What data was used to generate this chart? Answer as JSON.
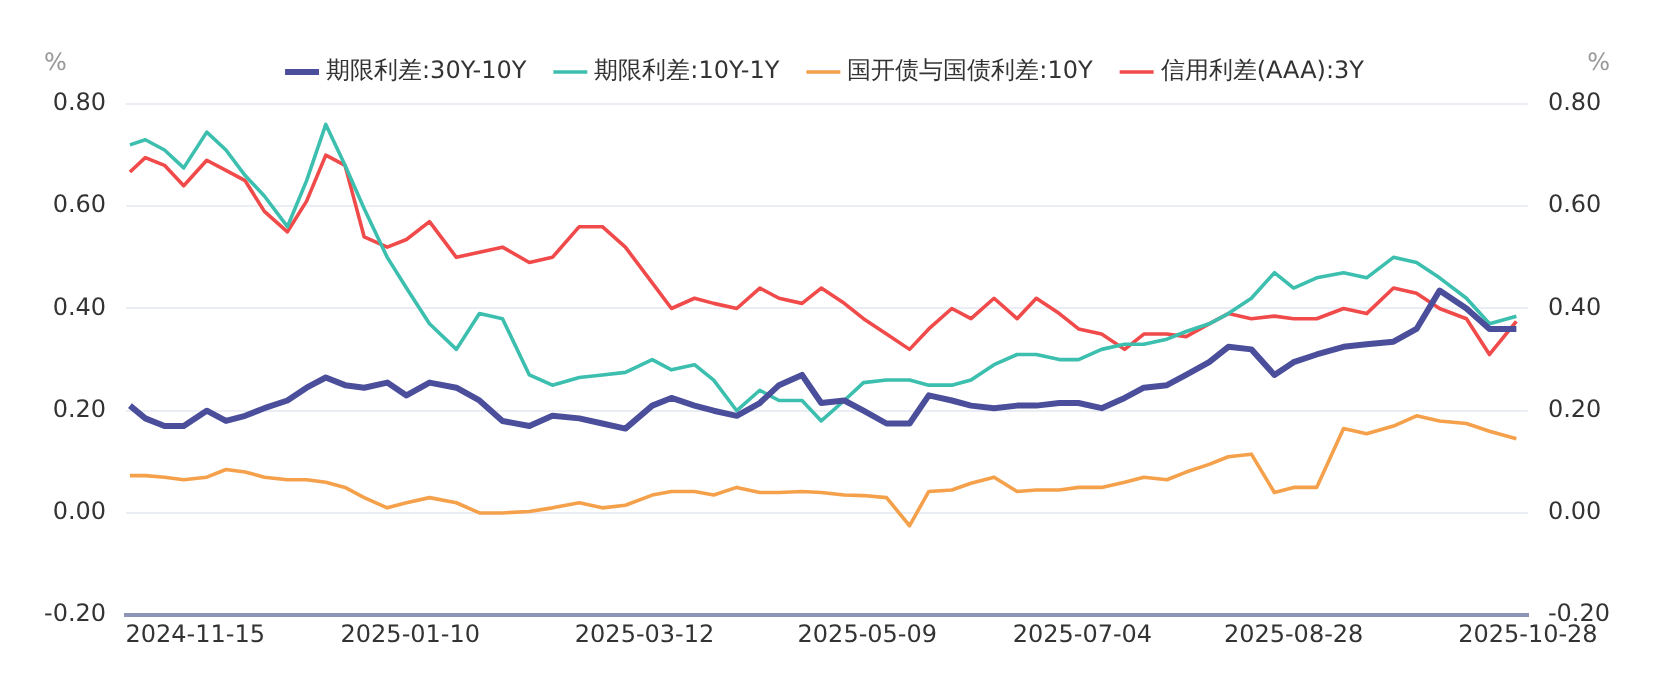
{
  "chart_data": {
    "type": "line",
    "x": [
      "2024-10-29",
      "2024-11-02",
      "2024-11-07",
      "2024-11-12",
      "2024-11-18",
      "2024-11-23",
      "2024-11-28",
      "2024-12-03",
      "2024-12-09",
      "2024-12-14",
      "2024-12-19",
      "2024-12-24",
      "2024-12-29",
      "2025-01-04",
      "2025-01-09",
      "2025-01-15",
      "2025-01-22",
      "2025-01-28",
      "2025-02-03",
      "2025-02-10",
      "2025-02-16",
      "2025-02-23",
      "2025-03-01",
      "2025-03-07",
      "2025-03-14",
      "2025-03-19",
      "2025-03-25",
      "2025-03-30",
      "2025-04-05",
      "2025-04-11",
      "2025-04-16",
      "2025-04-22",
      "2025-04-27",
      "2025-05-03",
      "2025-05-08",
      "2025-05-14",
      "2025-05-20",
      "2025-05-25",
      "2025-05-31",
      "2025-06-05",
      "2025-06-11",
      "2025-06-17",
      "2025-06-22",
      "2025-06-28",
      "2025-07-03",
      "2025-07-09",
      "2025-07-15",
      "2025-07-20",
      "2025-07-26",
      "2025-07-31",
      "2025-08-06",
      "2025-08-11",
      "2025-08-17",
      "2025-08-23",
      "2025-08-28",
      "2025-09-03",
      "2025-09-10",
      "2025-09-16",
      "2025-09-23",
      "2025-09-29",
      "2025-10-05",
      "2025-10-12",
      "2025-10-18",
      "2025-10-25"
    ],
    "series": [
      {
        "name": "期限利差:30Y-10Y",
        "color": "#4b4e9a",
        "values": [
          0.21,
          0.185,
          0.17,
          0.17,
          0.2,
          0.18,
          0.19,
          0.205,
          0.22,
          0.245,
          0.265,
          0.25,
          0.245,
          0.255,
          0.23,
          0.255,
          0.245,
          0.22,
          0.18,
          0.17,
          0.19,
          0.185,
          0.175,
          0.165,
          0.21,
          0.225,
          0.21,
          0.2,
          0.19,
          0.215,
          0.25,
          0.27,
          0.215,
          0.22,
          0.2,
          0.175,
          0.175,
          0.23,
          0.22,
          0.21,
          0.205,
          0.21,
          0.21,
          0.215,
          0.215,
          0.205,
          0.225,
          0.245,
          0.25,
          0.27,
          0.295,
          0.325,
          0.32,
          0.27,
          0.295,
          0.31,
          0.325,
          0.33,
          0.335,
          0.36,
          0.435,
          0.4,
          0.36,
          0.36
        ]
      },
      {
        "name": "期限利差:10Y-1Y",
        "color": "#3cbfae",
        "values": [
          0.72,
          0.73,
          0.71,
          0.675,
          0.745,
          0.71,
          0.66,
          0.62,
          0.56,
          0.65,
          0.76,
          0.68,
          0.595,
          0.5,
          0.44,
          0.37,
          0.32,
          0.39,
          0.38,
          0.27,
          0.25,
          0.265,
          0.27,
          0.275,
          0.3,
          0.28,
          0.29,
          0.26,
          0.2,
          0.24,
          0.22,
          0.22,
          0.18,
          0.22,
          0.255,
          0.26,
          0.26,
          0.25,
          0.25,
          0.26,
          0.29,
          0.31,
          0.31,
          0.3,
          0.3,
          0.32,
          0.33,
          0.33,
          0.34,
          0.355,
          0.37,
          0.39,
          0.42,
          0.47,
          0.44,
          0.46,
          0.47,
          0.46,
          0.5,
          0.49,
          0.46,
          0.42,
          0.37,
          0.385
        ]
      },
      {
        "name": "国开债与国债利差:10Y",
        "color": "#f5a04a",
        "values": [
          0.073,
          0.073,
          0.07,
          0.065,
          0.07,
          0.085,
          0.08,
          0.07,
          0.065,
          0.065,
          0.06,
          0.05,
          0.03,
          0.01,
          0.02,
          0.03,
          0.02,
          0.0,
          0.0,
          0.003,
          0.01,
          0.02,
          0.01,
          0.015,
          0.035,
          0.042,
          0.042,
          0.035,
          0.05,
          0.04,
          0.04,
          0.042,
          0.04,
          0.035,
          0.034,
          0.03,
          -0.025,
          0.042,
          0.045,
          0.058,
          0.07,
          0.042,
          0.045,
          0.045,
          0.05,
          0.05,
          0.06,
          0.07,
          0.065,
          0.08,
          0.095,
          0.11,
          0.115,
          0.04,
          0.05,
          0.05,
          0.165,
          0.155,
          0.17,
          0.19,
          0.18,
          0.175,
          0.16,
          0.145
        ]
      },
      {
        "name": "信用利差(AAA):3Y",
        "color": "#f04a4a",
        "values": [
          0.667,
          0.695,
          0.68,
          0.64,
          0.69,
          0.67,
          0.65,
          0.59,
          0.55,
          0.61,
          0.7,
          0.68,
          0.54,
          0.52,
          0.535,
          0.57,
          0.5,
          0.51,
          0.52,
          0.49,
          0.5,
          0.56,
          0.56,
          0.52,
          0.45,
          0.4,
          0.42,
          0.41,
          0.4,
          0.44,
          0.42,
          0.41,
          0.44,
          0.41,
          0.38,
          0.35,
          0.32,
          0.36,
          0.4,
          0.38,
          0.42,
          0.38,
          0.42,
          0.39,
          0.36,
          0.35,
          0.32,
          0.35,
          0.35,
          0.345,
          0.37,
          0.39,
          0.38,
          0.385,
          0.38,
          0.38,
          0.4,
          0.39,
          0.44,
          0.43,
          0.4,
          0.38,
          0.31,
          0.375
        ]
      }
    ],
    "xlim": [
      "2024-10-28",
      "2025-10-28"
    ],
    "xticks": [
      "2024-11-15",
      "2025-01-10",
      "2025-03-12",
      "2025-05-09",
      "2025-07-04",
      "2025-08-28",
      "2025-10-28"
    ],
    "ylim": [
      -0.2,
      0.8
    ],
    "yticks": [
      {
        "value": -0.2,
        "label": "-0.20"
      },
      {
        "value": 0,
        "label": "0.00"
      },
      {
        "value": 0.2,
        "label": "0.20"
      },
      {
        "value": 0.4,
        "label": "0.40"
      },
      {
        "value": 0.6,
        "label": "0.60"
      },
      {
        "value": 0.8,
        "label": "0.80"
      }
    ],
    "y2lim": [
      -0.2,
      0.8
    ],
    "y2ticks": [
      {
        "value": -0.2,
        "label": "-0.20"
      },
      {
        "value": 0,
        "label": "0.00"
      },
      {
        "value": 0.2,
        "label": "0.20"
      },
      {
        "value": 0.4,
        "label": "0.40"
      },
      {
        "value": 0.6,
        "label": "0.60"
      },
      {
        "value": 0.8,
        "label": "0.80"
      }
    ],
    "ylabel": "%",
    "y2label": "%",
    "grid": "y",
    "legend": "top",
    "marker": "none",
    "line_style": "solid"
  }
}
